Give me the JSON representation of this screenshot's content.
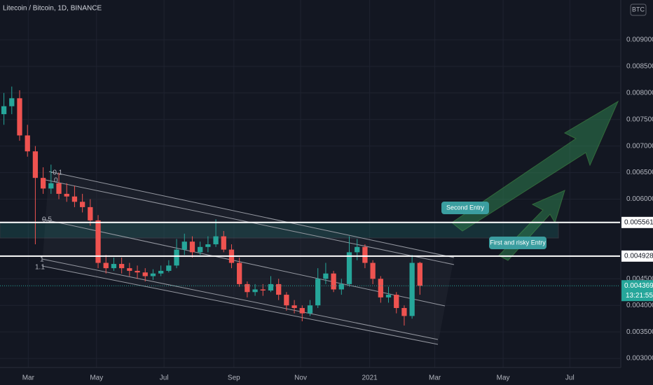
{
  "chart_data": {
    "type": "candlestick",
    "title": "Litecoin / Bitcoin, 1D, BINANCE",
    "currency": "BTC",
    "open": [
      0.0076,
      0.00775,
      0.0079,
      0.0072,
      0.0069,
      0.0064,
      0.0062,
      0.0063,
      0.0061,
      0.00605,
      0.00595,
      0.00585,
      0.0056,
      0.0048,
      0.0047,
      0.00478,
      0.0047,
      0.00465,
      0.00462,
      0.00455,
      0.0046,
      0.00465,
      0.00475,
      0.00505,
      0.0052,
      0.005,
      0.0051,
      0.00515,
      0.0053,
      0.00505,
      0.0048,
      0.0044,
      0.00425,
      0.0043,
      0.00428,
      0.0044,
      0.0042,
      0.004,
      0.00395,
      0.00385,
      0.004,
      0.0045,
      0.0046,
      0.0043,
      0.0044,
      0.005,
      0.0051,
      0.0048,
      0.0045,
      0.00415,
      0.0042,
      0.00395,
      0.0038,
      0.0048
    ],
    "high": [
      0.008,
      0.00812,
      0.00805,
      0.0074,
      0.007,
      0.0066,
      0.00665,
      0.0065,
      0.0063,
      0.00625,
      0.0061,
      0.006,
      0.0057,
      0.00495,
      0.0049,
      0.0049,
      0.0048,
      0.00475,
      0.0047,
      0.00468,
      0.00475,
      0.00485,
      0.00525,
      0.00535,
      0.0053,
      0.0052,
      0.0053,
      0.00562,
      0.0054,
      0.00515,
      0.0049,
      0.00445,
      0.0044,
      0.0044,
      0.00455,
      0.0045,
      0.00425,
      0.0041,
      0.004,
      0.0041,
      0.0047,
      0.0048,
      0.00465,
      0.0045,
      0.0053,
      0.00525,
      0.00515,
      0.00485,
      0.00455,
      0.00435,
      0.00425,
      0.004,
      0.00495,
      0.00482
    ],
    "low": [
      0.0074,
      0.0076,
      0.0071,
      0.0068,
      0.00515,
      0.0061,
      0.0061,
      0.006,
      0.00595,
      0.00585,
      0.00575,
      0.0055,
      0.0047,
      0.0046,
      0.00465,
      0.0046,
      0.00455,
      0.0045,
      0.00445,
      0.00448,
      0.00455,
      0.00462,
      0.0047,
      0.00495,
      0.0049,
      0.00495,
      0.005,
      0.0051,
      0.005,
      0.0047,
      0.00435,
      0.00415,
      0.00418,
      0.00418,
      0.00425,
      0.0041,
      0.0039,
      0.00385,
      0.0037,
      0.0038,
      0.00395,
      0.0044,
      0.00425,
      0.0042,
      0.00435,
      0.00485,
      0.0047,
      0.0044,
      0.00405,
      0.00405,
      0.00385,
      0.00362,
      0.00375,
      0.0042
    ],
    "close": [
      0.00775,
      0.0079,
      0.0072,
      0.0069,
      0.0064,
      0.0062,
      0.0063,
      0.0061,
      0.00605,
      0.00595,
      0.00585,
      0.0056,
      0.0048,
      0.0047,
      0.00478,
      0.0047,
      0.00465,
      0.00462,
      0.00455,
      0.0046,
      0.00465,
      0.00475,
      0.00505,
      0.0052,
      0.005,
      0.0051,
      0.00515,
      0.0053,
      0.00505,
      0.0048,
      0.0044,
      0.00425,
      0.0043,
      0.00428,
      0.0044,
      0.0042,
      0.004,
      0.00395,
      0.00385,
      0.004,
      0.0045,
      0.0046,
      0.0043,
      0.0044,
      0.005,
      0.0051,
      0.0048,
      0.0045,
      0.00415,
      0.0042,
      0.00395,
      0.0038,
      0.0048,
      0.004369
    ],
    "colors": {
      "up": "#26a69a",
      "down": "#ef5350"
    },
    "ylim": [
      0.00283,
      0.00975
    ],
    "yticks": [
      {
        "value": 0.009,
        "label": "0.009000"
      },
      {
        "value": 0.0085,
        "label": "0.008500"
      },
      {
        "value": 0.008,
        "label": "0.008000"
      },
      {
        "value": 0.0075,
        "label": "0.007500"
      },
      {
        "value": 0.007,
        "label": "0.007000"
      },
      {
        "value": 0.0065,
        "label": "0.006500"
      },
      {
        "value": 0.006,
        "label": "0.006000"
      },
      {
        "value": 0.0045,
        "label": "0.004500"
      },
      {
        "value": 0.004,
        "label": "0.004000"
      },
      {
        "value": 0.0035,
        "label": "0.003500"
      },
      {
        "value": 0.003,
        "label": "0.003000"
      }
    ],
    "xlim": [
      -0.5,
      78.5
    ],
    "xticks": [
      {
        "value": 3.1,
        "label": "Mar"
      },
      {
        "value": 11.8,
        "label": "May"
      },
      {
        "value": 20.4,
        "label": "Jul"
      },
      {
        "value": 29.3,
        "label": "Sep"
      },
      {
        "value": 37.8,
        "label": "Nov"
      },
      {
        "value": 46.6,
        "label": "2021"
      },
      {
        "value": 54.9,
        "label": "Mar"
      },
      {
        "value": 63.6,
        "label": "May"
      },
      {
        "value": 72.1,
        "label": "Jul"
      }
    ],
    "levels": [
      0.005561,
      0.004928
    ],
    "last_price": 0.004369,
    "countdown": "13:21:55",
    "annotations": [
      "Second Entry",
      "First and risky Entry"
    ],
    "channel_levels": [
      "-0.1",
      "0",
      "0.5",
      "1",
      "1.1"
    ]
  }
}
